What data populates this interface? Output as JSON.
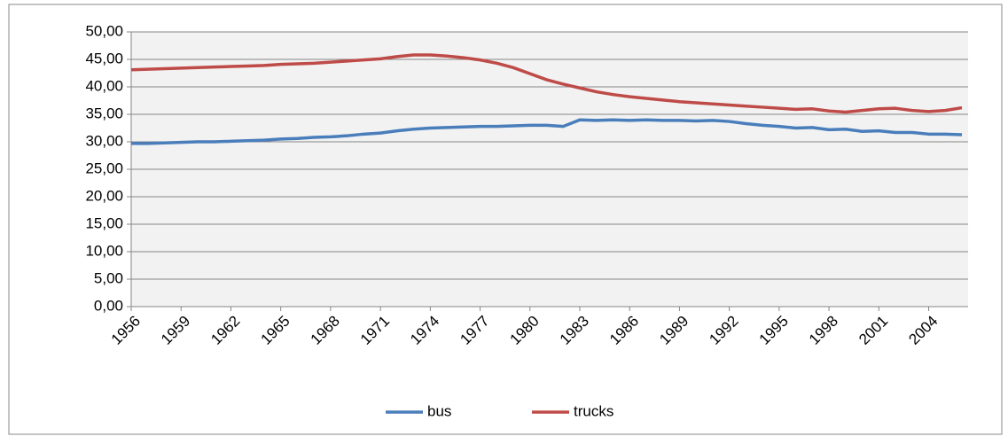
{
  "chart_data": {
    "type": "line",
    "x": [
      1956,
      1957,
      1958,
      1959,
      1960,
      1961,
      1962,
      1963,
      1964,
      1965,
      1966,
      1967,
      1968,
      1969,
      1970,
      1971,
      1972,
      1973,
      1974,
      1975,
      1976,
      1977,
      1978,
      1979,
      1980,
      1981,
      1982,
      1983,
      1984,
      1985,
      1986,
      1987,
      1988,
      1989,
      1990,
      1991,
      1992,
      1993,
      1994,
      1995,
      1996,
      1997,
      1998,
      1999,
      2000,
      2001,
      2002,
      2003,
      2004,
      2005,
      2006
    ],
    "xlim": [
      1956,
      2006
    ],
    "xticks": [
      1956,
      1959,
      1962,
      1965,
      1968,
      1971,
      1974,
      1977,
      1980,
      1983,
      1986,
      1989,
      1992,
      1995,
      1998,
      2001,
      2004
    ],
    "ylim": [
      0,
      50
    ],
    "yticks": [
      {
        "value": 0,
        "label": "0,00"
      },
      {
        "value": 5,
        "label": "5,00"
      },
      {
        "value": 10,
        "label": "10,00"
      },
      {
        "value": 15,
        "label": "15,00"
      },
      {
        "value": 20,
        "label": "20,00"
      },
      {
        "value": 25,
        "label": "25,00"
      },
      {
        "value": 30,
        "label": "30,00"
      },
      {
        "value": 35,
        "label": "35,00"
      },
      {
        "value": 40,
        "label": "40,00"
      },
      {
        "value": 45,
        "label": "45,00"
      },
      {
        "value": 50,
        "label": "50,00"
      }
    ],
    "grid": true,
    "legend": "bottom",
    "series": [
      {
        "name": "bus",
        "color": "#4a7ebb",
        "values": [
          29.7,
          29.7,
          29.8,
          29.9,
          30.0,
          30.0,
          30.1,
          30.2,
          30.3,
          30.5,
          30.6,
          30.8,
          30.9,
          31.1,
          31.4,
          31.6,
          32.0,
          32.3,
          32.5,
          32.6,
          32.7,
          32.8,
          32.8,
          32.9,
          33.0,
          33.0,
          32.8,
          34.0,
          33.9,
          34.0,
          33.9,
          34.0,
          33.9,
          33.9,
          33.8,
          33.9,
          33.7,
          33.3,
          33.0,
          32.8,
          32.5,
          32.6,
          32.2,
          32.3,
          31.9,
          32.0,
          31.7,
          31.7,
          31.4,
          31.4,
          31.3
        ]
      },
      {
        "name": "trucks",
        "color": "#be4b48",
        "values": [
          43.1,
          43.2,
          43.3,
          43.4,
          43.5,
          43.6,
          43.7,
          43.8,
          43.9,
          44.1,
          44.2,
          44.3,
          44.5,
          44.7,
          44.9,
          45.1,
          45.5,
          45.8,
          45.8,
          45.6,
          45.3,
          44.9,
          44.3,
          43.5,
          42.4,
          41.3,
          40.5,
          39.8,
          39.1,
          38.6,
          38.2,
          37.9,
          37.6,
          37.3,
          37.1,
          36.9,
          36.7,
          36.5,
          36.3,
          36.1,
          35.9,
          36.0,
          35.6,
          35.4,
          35.7,
          36.0,
          36.1,
          35.7,
          35.5,
          35.7,
          36.2
        ]
      }
    ]
  }
}
